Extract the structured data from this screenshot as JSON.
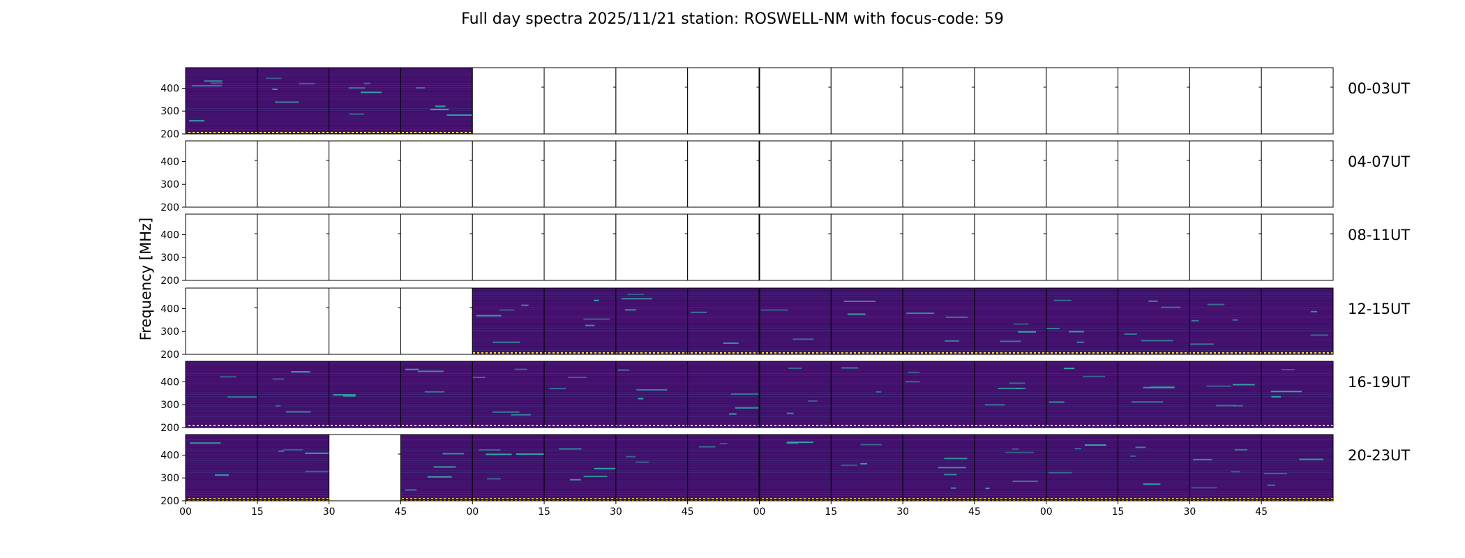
{
  "chart_data": {
    "type": "heatmap",
    "title": "Full day spectra 2025/11/21 station: ROSWELL-NM with focus-code: 59",
    "ylabel": "Frequency [MHz]",
    "xlabel": "",
    "y_ticks": [
      "400",
      "300",
      "200"
    ],
    "ylim": [
      200,
      490
    ],
    "x_ticks": [
      "00",
      "15",
      "30",
      "45",
      "00",
      "15",
      "30",
      "45",
      "00",
      "15",
      "30",
      "45",
      "00",
      "15",
      "30",
      "45"
    ],
    "panels_per_row": 16,
    "panel_minutes": 15,
    "colors": {
      "background": "#44106e",
      "stripe_light": "#3d4a8a",
      "stripe_dark": "#3a0d63",
      "signal": "#2fb3a8",
      "bottom_band": "#f1e51d",
      "empty": "#ffffff"
    },
    "rows": [
      {
        "label": "00-03UT",
        "has_data": [
          1,
          1,
          1,
          1,
          0,
          0,
          0,
          0,
          0,
          0,
          0,
          0,
          0,
          0,
          0,
          0
        ]
      },
      {
        "label": "04-07UT",
        "has_data": [
          0,
          0,
          0,
          0,
          0,
          0,
          0,
          0,
          0,
          0,
          0,
          0,
          0,
          0,
          0,
          0
        ]
      },
      {
        "label": "08-11UT",
        "has_data": [
          0,
          0,
          0,
          0,
          0,
          0,
          0,
          0,
          0,
          0,
          0,
          0,
          0,
          0,
          0,
          0
        ]
      },
      {
        "label": "12-15UT",
        "has_data": [
          0,
          0,
          0,
          0,
          1,
          1,
          1,
          1,
          1,
          1,
          1,
          1,
          1,
          1,
          1,
          1
        ]
      },
      {
        "label": "16-19UT",
        "has_data": [
          1,
          1,
          1,
          1,
          1,
          1,
          1,
          1,
          1,
          1,
          1,
          1,
          1,
          1,
          1,
          1
        ]
      },
      {
        "label": "20-23UT",
        "has_data": [
          1,
          1,
          0,
          1,
          1,
          1,
          1,
          1,
          1,
          1,
          1,
          1,
          1,
          1,
          1,
          1
        ]
      }
    ]
  }
}
